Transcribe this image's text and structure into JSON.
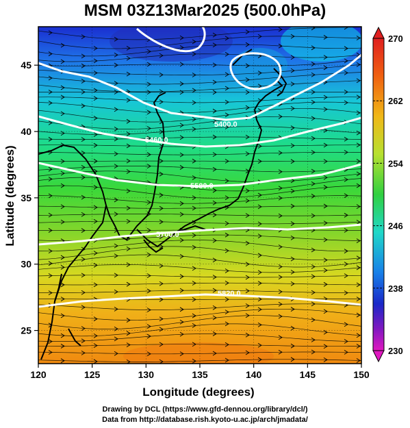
{
  "title": "MSM 03Z13Mar2025 (500.0hPa)",
  "xaxis": {
    "label": "Longitude (degrees)",
    "ticks": [
      "120",
      "125",
      "130",
      "135",
      "140",
      "145",
      "150"
    ]
  },
  "yaxis": {
    "label": "Latitude  (degrees)",
    "ticks": [
      "25",
      "30",
      "35",
      "40",
      "45"
    ]
  },
  "colorbar": {
    "ticks": [
      "270",
      "262",
      "254",
      "246",
      "238",
      "230"
    ],
    "min": 230,
    "max": 270
  },
  "contour_labels": [
    "5400.0",
    "5460.0",
    "5580.0",
    "5700.0",
    "5820.0"
  ],
  "credits": {
    "line1": "Drawing by DCL (https://www.gfd-dennou.org/library/dcl/)",
    "line2": "Data from http://database.rish.kyoto-u.ac.jp/arch/jmadata/"
  },
  "colors": {
    "cold": "#1a2fd0",
    "cool": "#19d0e0",
    "mid": "#39d839",
    "warm": "#e8d020",
    "hot": "#f08a10"
  }
}
